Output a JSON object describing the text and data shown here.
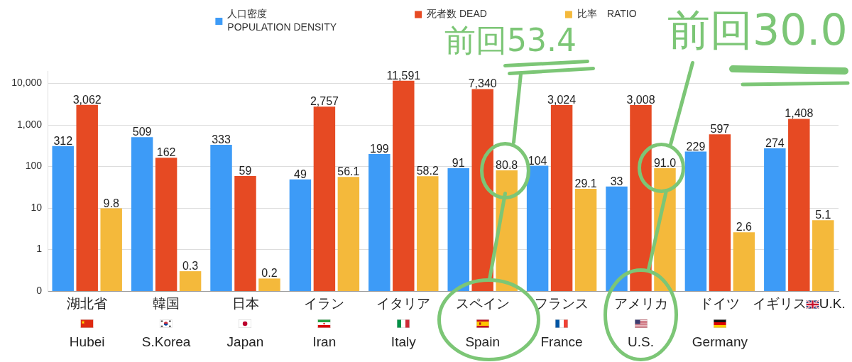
{
  "chart_data": {
    "type": "bar",
    "categories": [
      "湖北省\nHubei",
      "韓国\nS.Korea",
      "日本\nJapan",
      "イラン\nIran",
      "イタリア\nItaly",
      "スペイン\nSpain",
      "フランス\nFrance",
      "アメリカ\nU.S.",
      "ドイツ\nGermany",
      "イギリス U.K."
    ],
    "series": [
      {
        "name": "人口密度\nPOPULATION DENSITY",
        "color": "#3d9bf7",
        "values": [
          312,
          509,
          333,
          49,
          199,
          91,
          104,
          33,
          229,
          274
        ],
        "value_labels": [
          "312",
          "509",
          "333",
          "49",
          "199",
          "91",
          "104",
          "33",
          "229",
          "274"
        ]
      },
      {
        "name": "死者数 DEAD",
        "color": "#e64a23",
        "values": [
          3062,
          162,
          59,
          2757,
          11591,
          7340,
          3024,
          3008,
          597,
          1408
        ],
        "value_labels": [
          "3,062",
          "162",
          "59",
          "2,757",
          "11,591",
          "7,340",
          "3,024",
          "3,008",
          "597",
          "1,408"
        ]
      },
      {
        "name": "比率　RATIO",
        "color": "#f4b93b",
        "values": [
          9.8,
          0.3,
          0.2,
          56.1,
          58.2,
          80.8,
          29.1,
          91.0,
          2.6,
          5.1
        ],
        "value_labels": [
          "9.8",
          "0.3",
          "0.2",
          "56.1",
          "58.2",
          "80.8",
          "29.1",
          "91.0",
          "2.6",
          "5.1"
        ]
      }
    ],
    "log": true,
    "ylim": [
      0.1,
      20000
    ],
    "yticks": [
      {
        "value": 0.1,
        "label": "0"
      },
      1,
      10,
      100,
      {
        "value": 1000,
        "label": "1,000"
      },
      {
        "value": 10000,
        "label": "10,000"
      }
    ],
    "grid": "y",
    "legend": "top",
    "annotations": [
      "前回53.4",
      "前回30.0"
    ]
  }
}
